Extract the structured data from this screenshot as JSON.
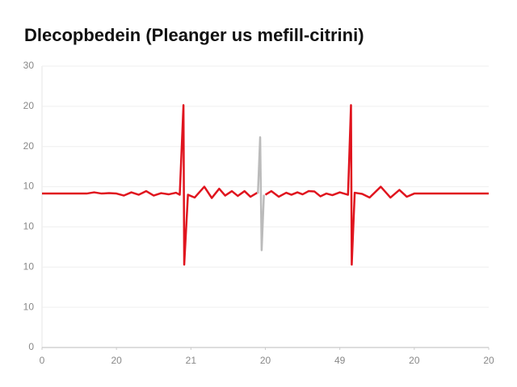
{
  "chart_data": {
    "type": "line",
    "title": "Dlecopbedein (Pleanger us mefill-citrini)",
    "x": [
      0,
      6,
      7,
      8,
      9,
      10,
      11,
      12,
      13,
      14,
      15,
      16,
      17,
      18,
      18.5,
      19.0,
      19.1,
      19.6,
      20.5,
      21.8,
      22.8,
      23.8,
      24.6,
      25.5,
      26.3,
      27.2,
      28,
      29,
      29.1,
      30,
      30.8,
      31.8,
      32.8,
      33.5,
      34.3,
      35,
      35.8,
      36.6,
      37.4,
      38.2,
      39,
      40,
      41.1,
      41.5,
      41.6,
      42,
      43,
      44,
      45.5,
      46.8,
      48,
      49,
      50,
      60
    ],
    "series": [
      {
        "color": "#e0141e",
        "values": [
          38.3,
          38.3,
          38.6,
          38.3,
          38.4,
          38.3,
          37.8,
          38.6,
          38.0,
          38.9,
          37.8,
          38.4,
          38.1,
          38.5,
          38.0,
          60.3,
          20.6,
          38.0,
          37.3,
          40.0,
          37.2,
          39.5,
          37.8,
          38.9,
          37.7,
          38.9,
          37.5,
          38.6,
          null,
          38.0,
          38.9,
          37.5,
          38.5,
          38.0,
          38.6,
          38.1,
          38.9,
          38.8,
          37.6,
          38.3,
          37.9,
          38.6,
          38.0,
          60.3,
          20.6,
          38.5,
          38.2,
          37.3,
          40.0,
          37.3,
          39.2,
          37.5,
          38.3,
          38.3
        ]
      },
      {
        "color": "#bbbbbb",
        "x": [
          29.0,
          29.3,
          29.5,
          29.8
        ],
        "values": [
          38.3,
          52.3,
          24.2,
          38.0
        ]
      }
    ],
    "xlim": [
      0,
      60
    ],
    "xticks": [
      0,
      {
        "value": 10,
        "label": "20"
      },
      {
        "value": 20,
        "label": "21"
      },
      {
        "value": 30,
        "label": "20"
      },
      {
        "value": 40,
        "label": "49"
      },
      {
        "value": 50,
        "label": "20"
      },
      {
        "value": 60,
        "label": "20"
      }
    ],
    "ylim": [
      0,
      70
    ],
    "yticks": [
      0,
      {
        "value": 10,
        "label": "10"
      },
      {
        "value": 20,
        "label": "10"
      },
      {
        "value": 30,
        "label": "10"
      },
      {
        "value": 40,
        "label": "10"
      },
      {
        "value": 50,
        "label": "20"
      },
      {
        "value": 60,
        "label": "20"
      },
      {
        "value": 70,
        "label": "30"
      }
    ],
    "grid": true
  }
}
